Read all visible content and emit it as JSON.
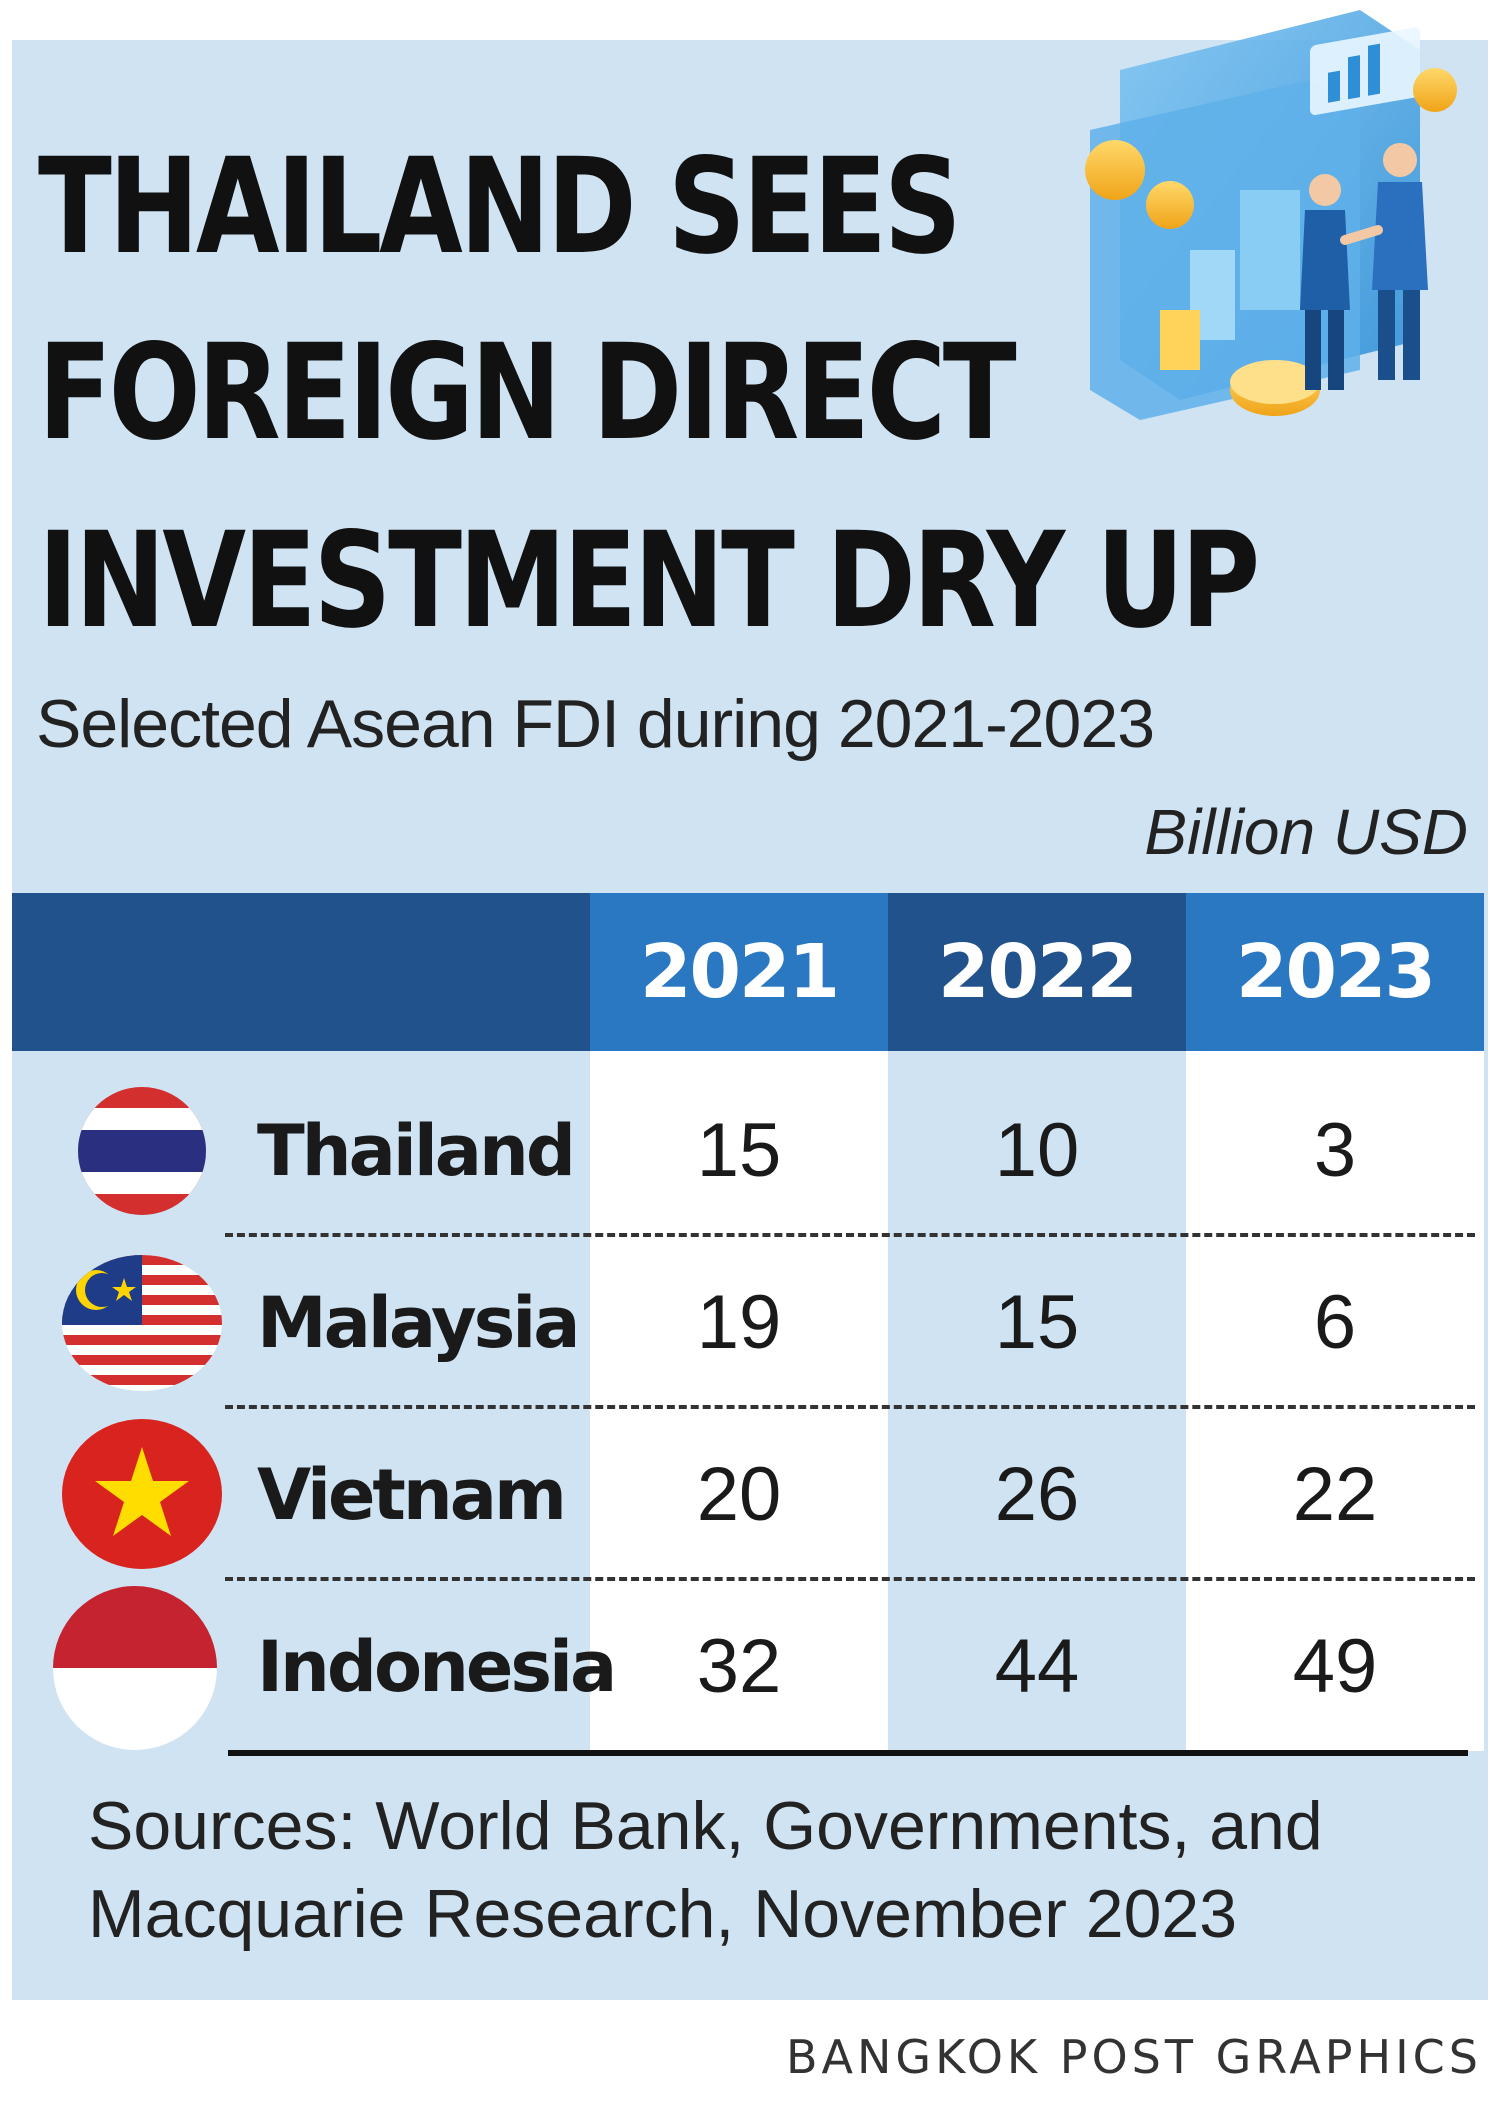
{
  "title_lines": [
    "THAILAND SEES",
    "FOREIGN DIRECT",
    "INVESTMENT DRY UP"
  ],
  "subtitle": "Selected Asean FDI during 2021-2023",
  "unit": "Billion USD",
  "colors": {
    "header_blue": "#21528c",
    "accent_blue": "#2a78c2",
    "panel": "#cfe3f3"
  },
  "chart_data": {
    "type": "table",
    "columns": [
      "2021",
      "2022",
      "2023"
    ],
    "rows": [
      {
        "country": "Thailand",
        "flag": "thailand-flag-icon",
        "values": [
          "15",
          "10",
          "3"
        ]
      },
      {
        "country": "Malaysia",
        "flag": "malaysia-flag-icon",
        "values": [
          "19",
          "15",
          "6"
        ]
      },
      {
        "country": "Vietnam",
        "flag": "vietnam-flag-icon",
        "values": [
          "20",
          "26",
          "22"
        ]
      },
      {
        "country": "Indonesia",
        "flag": "indonesia-flag-icon",
        "values": [
          "32",
          "44",
          "49"
        ]
      }
    ]
  },
  "sources": [
    "Sources: World Bank, Governments, and",
    "Macquarie Research, November 2023"
  ],
  "credit": "BANGKOK POST GRAPHICS"
}
